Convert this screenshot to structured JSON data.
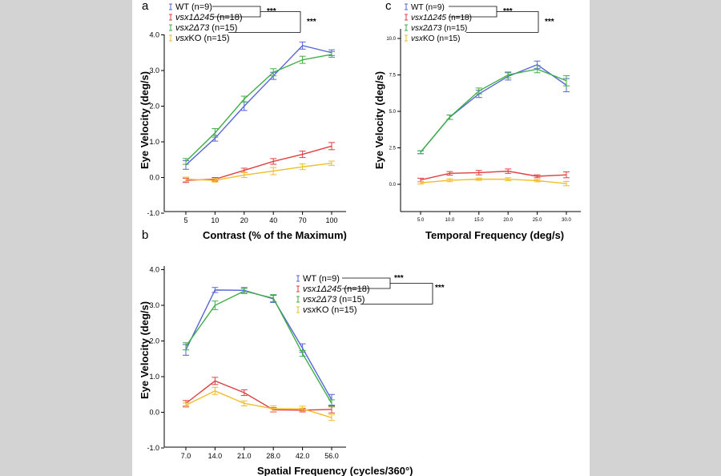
{
  "colors": {
    "WT": "#5566d6",
    "vsx1": "#e04040",
    "vsx2": "#3fae45",
    "vsxKO": "#f2bc2a",
    "background": "#d3d3d3"
  },
  "chart_data": [
    {
      "panel": "a",
      "type": "line",
      "xlabel": "Contrast (% of the Maximum)",
      "ylabel": "Eye Velocity (deg/s)",
      "categories": [
        "5",
        "10",
        "20",
        "40",
        "70",
        "100"
      ],
      "ylim": [
        -1.0,
        4.0
      ],
      "yticks": [
        "-1.0",
        "0.0",
        "1.0",
        "2.0",
        "3.0",
        "4.0"
      ],
      "legend": [
        {
          "key": "WT",
          "prefix": "WT",
          "italic": "",
          "suffix": " (n=9)"
        },
        {
          "key": "vsx1",
          "prefix": "",
          "italic": "vsx1Δ245",
          "suffix": " (n=18)"
        },
        {
          "key": "vsx2",
          "prefix": "",
          "italic": "vsx2Δ73",
          "suffix": " (n=15)"
        },
        {
          "key": "vsxKO",
          "prefix": "",
          "italic": "vsx",
          "suffix": "KO (n=15)"
        }
      ],
      "significance": [
        "***",
        "***"
      ],
      "series": [
        {
          "key": "WT",
          "values": [
            0.35,
            1.1,
            2.0,
            2.85,
            3.7,
            3.5
          ],
          "errors": [
            0.12,
            0.08,
            0.12,
            0.1,
            0.1,
            0.08
          ]
        },
        {
          "key": "vsx1",
          "values": [
            -0.08,
            -0.05,
            0.2,
            0.45,
            0.65,
            0.88
          ],
          "errors": [
            0.06,
            0.05,
            0.06,
            0.08,
            0.09,
            0.1
          ]
        },
        {
          "key": "vsx2",
          "values": [
            0.45,
            1.25,
            2.2,
            2.95,
            3.3,
            3.45
          ],
          "errors": [
            0.08,
            0.12,
            0.08,
            0.1,
            0.1,
            0.08
          ]
        },
        {
          "key": "vsxKO",
          "values": [
            -0.05,
            -0.08,
            0.07,
            0.18,
            0.3,
            0.4
          ],
          "errors": [
            0.06,
            0.05,
            0.07,
            0.1,
            0.08,
            0.06
          ]
        }
      ]
    },
    {
      "panel": "b",
      "type": "line",
      "xlabel": "Spatial Frequency (cycles/360°)",
      "ylabel": "Eye Velocity (deg/s)",
      "categories": [
        "7.0",
        "14.0",
        "21.0",
        "28.0",
        "42.0",
        "56.0"
      ],
      "ylim": [
        -1.0,
        4.0
      ],
      "yticks": [
        "-1.0",
        "0.0",
        "1.0",
        "2.0",
        "3.0",
        "4.0"
      ],
      "legend": [
        {
          "key": "WT",
          "prefix": "WT",
          "italic": "",
          "suffix": " (n=9)"
        },
        {
          "key": "vsx1",
          "prefix": "",
          "italic": "vsx1Δ245",
          "suffix": " (n=18)"
        },
        {
          "key": "vsx2",
          "prefix": "",
          "italic": "vsx2Δ73",
          "suffix": " (n=15)"
        },
        {
          "key": "vsxKO",
          "prefix": "",
          "italic": "vsx",
          "suffix": "KO (n=15)"
        }
      ],
      "significance": [
        "***",
        "***"
      ],
      "series": [
        {
          "key": "WT",
          "values": [
            1.75,
            3.43,
            3.42,
            3.18,
            1.8,
            0.35
          ],
          "errors": [
            0.15,
            0.07,
            0.08,
            0.1,
            0.12,
            0.15
          ]
        },
        {
          "key": "vsx1",
          "values": [
            0.25,
            0.88,
            0.55,
            0.07,
            0.06,
            0.08
          ],
          "errors": [
            0.08,
            0.1,
            0.08,
            0.06,
            0.05,
            0.1
          ]
        },
        {
          "key": "vsx2",
          "values": [
            1.85,
            3.0,
            3.4,
            3.2,
            1.65,
            0.25
          ],
          "errors": [
            0.1,
            0.12,
            0.07,
            0.1,
            0.08,
            0.1
          ]
        },
        {
          "key": "vsxKO",
          "values": [
            0.2,
            0.6,
            0.25,
            0.1,
            0.1,
            -0.15
          ],
          "errors": [
            0.06,
            0.1,
            0.07,
            0.08,
            0.07,
            0.08
          ]
        }
      ]
    },
    {
      "panel": "c",
      "type": "line",
      "xlabel": "Temporal Frequency (deg/s)",
      "ylabel": "Eye Velocity (deg/s)",
      "categories": [
        "5.0",
        "10.0",
        "15.0",
        "20.0",
        "25.0",
        "30.0"
      ],
      "ylim": [
        -1.0,
        11.0
      ],
      "yticks": [
        "0.0",
        "2.5",
        "5.0",
        "7.5",
        "10.0"
      ],
      "legend": [
        {
          "key": "WT",
          "prefix": "WT",
          "italic": "",
          "suffix": " (n=9)"
        },
        {
          "key": "vsx1",
          "prefix": "",
          "italic": "vsx1Δ245",
          "suffix": " (n=18)"
        },
        {
          "key": "vsx2",
          "prefix": "",
          "italic": "vsx2Δ73",
          "suffix": " (n=15)"
        },
        {
          "key": "vsxKO",
          "prefix": "",
          "italic": "vsx",
          "suffix": "KO (n=15)"
        }
      ],
      "significance": [
        "***",
        "***"
      ],
      "series": [
        {
          "key": "WT",
          "values": [
            2.2,
            4.6,
            6.2,
            7.4,
            8.2,
            6.8
          ],
          "errors": [
            0.1,
            0.15,
            0.25,
            0.25,
            0.25,
            0.45
          ]
        },
        {
          "key": "vsx1",
          "values": [
            0.3,
            0.75,
            0.8,
            0.9,
            0.55,
            0.65
          ],
          "errors": [
            0.12,
            0.12,
            0.15,
            0.15,
            0.1,
            0.2
          ]
        },
        {
          "key": "vsx2",
          "values": [
            2.2,
            4.6,
            6.4,
            7.5,
            7.9,
            7.1
          ],
          "errors": [
            0.1,
            0.15,
            0.2,
            0.2,
            0.25,
            0.35
          ]
        },
        {
          "key": "vsxKO",
          "values": [
            0.1,
            0.28,
            0.35,
            0.35,
            0.25,
            0.05
          ],
          "errors": [
            0.08,
            0.1,
            0.08,
            0.1,
            0.08,
            0.15
          ]
        }
      ]
    }
  ]
}
